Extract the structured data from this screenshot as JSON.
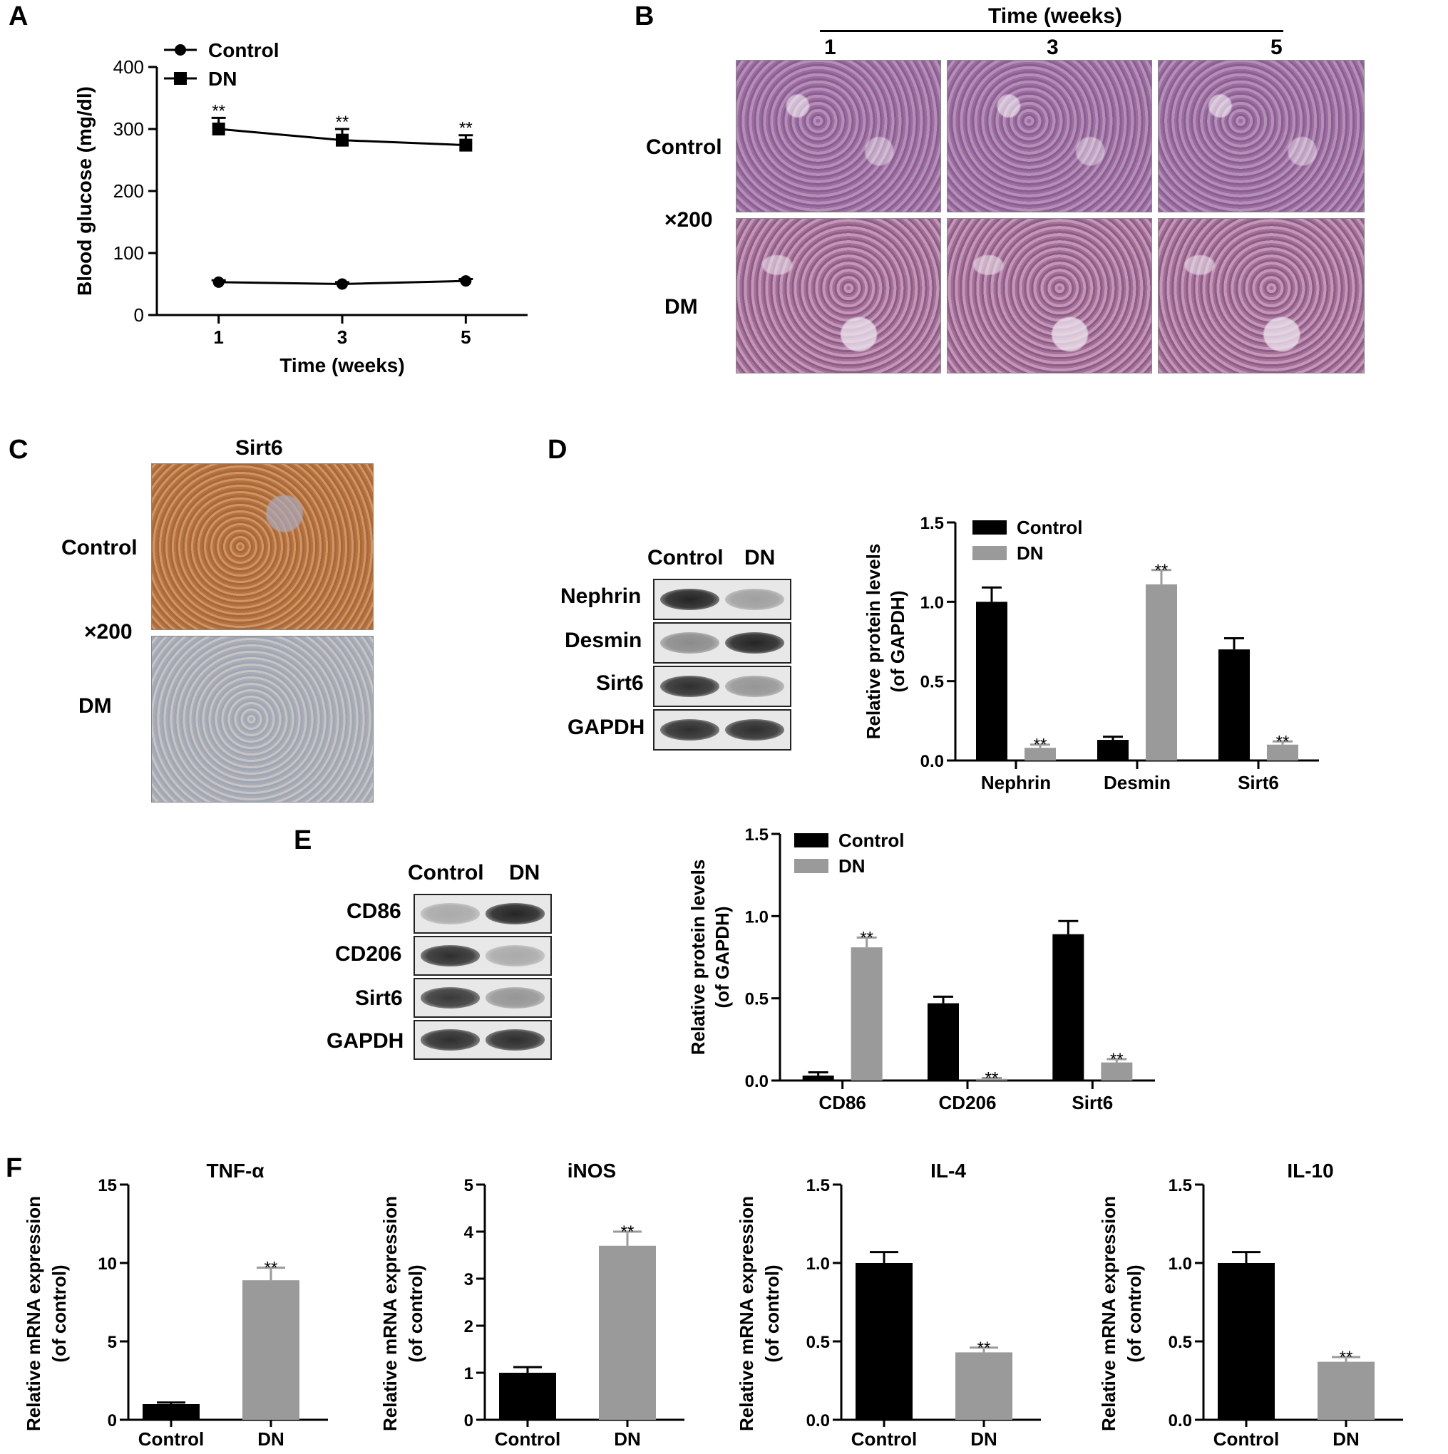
{
  "panel_letters": [
    "A",
    "B",
    "C",
    "D",
    "E",
    "F"
  ],
  "panel_b": {
    "header": "Time (weeks)",
    "columns": [
      "1",
      "3",
      "5"
    ],
    "rows": [
      "Control",
      "DM"
    ],
    "magnification": "×200"
  },
  "panel_c": {
    "title": "Sirt6",
    "rows": [
      "Control",
      "DM"
    ],
    "magnification": "×200"
  },
  "panel_d_blot": {
    "lanes": [
      "Control",
      "DN"
    ],
    "proteins": [
      "Nephrin",
      "Desmin",
      "Sirt6",
      "GAPDH"
    ],
    "intensity": {
      "Nephrin": [
        0.95,
        0.35
      ],
      "Desmin": [
        0.45,
        0.95
      ],
      "Sirt6": [
        0.9,
        0.4
      ],
      "GAPDH": [
        0.9,
        0.9
      ]
    }
  },
  "panel_e_blot": {
    "lanes": [
      "Control",
      "DN"
    ],
    "proteins": [
      "CD86",
      "CD206",
      "Sirt6",
      "GAPDH"
    ],
    "intensity": {
      "CD86": [
        0.3,
        0.95
      ],
      "CD206": [
        0.9,
        0.3
      ],
      "Sirt6": [
        0.85,
        0.4
      ],
      "GAPDH": [
        0.9,
        0.9
      ]
    }
  },
  "chart_data": [
    {
      "id": "A",
      "type": "line",
      "xlabel": "Time (weeks)",
      "ylabel": "Blood glucose (mg/dl)",
      "x": [
        1,
        3,
        5
      ],
      "xticks": [
        "1",
        "3",
        "5"
      ],
      "ylim": [
        0,
        400
      ],
      "yticks": [
        0,
        100,
        200,
        300,
        400
      ],
      "series": [
        {
          "name": "Control",
          "marker": "circle",
          "values": [
            53,
            50,
            55
          ],
          "errors": [
            3,
            3,
            3
          ],
          "sig": [
            "",
            "",
            ""
          ]
        },
        {
          "name": "DN",
          "marker": "square",
          "values": [
            300,
            282,
            274
          ],
          "errors": [
            18,
            18,
            16
          ],
          "sig": [
            "**",
            "**",
            "**"
          ]
        }
      ],
      "legend": "top-left"
    },
    {
      "id": "D",
      "type": "bar",
      "ylabel": "Relative protein levels (of GAPDH)",
      "ylabel_lines": [
        "Relative protein levels",
        "(of GAPDH)"
      ],
      "categories": [
        "Nephrin",
        "Desmin",
        "Sirt6"
      ],
      "ylim": [
        0,
        1.5
      ],
      "yticks": [
        "0.0",
        "0.5",
        "1.0",
        "1.5"
      ],
      "series": [
        {
          "name": "Control",
          "color": "#000000",
          "values": [
            1.0,
            0.13,
            0.7
          ],
          "errors": [
            0.09,
            0.02,
            0.07
          ],
          "sig": [
            "",
            "",
            ""
          ]
        },
        {
          "name": "DN",
          "color": "#9a9a9a",
          "values": [
            0.08,
            1.11,
            0.1
          ],
          "errors": [
            0.02,
            0.09,
            0.02
          ],
          "sig": [
            "**",
            "**",
            "**"
          ]
        }
      ],
      "legend": "top-left"
    },
    {
      "id": "E",
      "type": "bar",
      "ylabel": "Relative protein levels (of GAPDH)",
      "ylabel_lines": [
        "Relative protein levels",
        "(of GAPDH)"
      ],
      "categories": [
        "CD86",
        "CD206",
        "Sirt6"
      ],
      "ylim": [
        0,
        1.5
      ],
      "yticks": [
        "0.0",
        "0.5",
        "1.0",
        "1.5"
      ],
      "series": [
        {
          "name": "Control",
          "color": "#000000",
          "values": [
            0.03,
            0.47,
            0.89
          ],
          "errors": [
            0.02,
            0.04,
            0.08
          ],
          "sig": [
            "",
            "",
            ""
          ]
        },
        {
          "name": "DN",
          "color": "#9a9a9a",
          "values": [
            0.81,
            0.01,
            0.11
          ],
          "errors": [
            0.06,
            0.005,
            0.02
          ],
          "sig": [
            "**",
            "**",
            "**"
          ]
        }
      ],
      "legend": "top-left"
    },
    {
      "id": "F1",
      "type": "bar",
      "title": "TNF-α",
      "ylabel": "Relative mRNA expression (of control)",
      "ylabel_lines": [
        "Relative mRNA expression",
        "(of control)"
      ],
      "categories": [
        "Control",
        "DN"
      ],
      "ylim": [
        0,
        15
      ],
      "yticks": [
        "0",
        "5",
        "10",
        "15"
      ],
      "values": [
        1.0,
        8.9
      ],
      "errors": [
        0.1,
        0.8
      ],
      "colors": [
        "#000000",
        "#9a9a9a"
      ],
      "sig": [
        "",
        "**"
      ]
    },
    {
      "id": "F2",
      "type": "bar",
      "title": "iNOS",
      "ylabel": "Relative mRNA expression (of control)",
      "ylabel_lines": [
        "Relative mRNA expression",
        "(of control)"
      ],
      "categories": [
        "Control",
        "DN"
      ],
      "ylim": [
        0,
        5
      ],
      "yticks": [
        "0",
        "1",
        "2",
        "3",
        "4",
        "5"
      ],
      "values": [
        1.0,
        3.7
      ],
      "errors": [
        0.12,
        0.3
      ],
      "colors": [
        "#000000",
        "#9a9a9a"
      ],
      "sig": [
        "",
        "**"
      ]
    },
    {
      "id": "F3",
      "type": "bar",
      "title": "IL-4",
      "ylabel": "Relative mRNA expression (of control)",
      "ylabel_lines": [
        "Relative mRNA expression",
        "(of control)"
      ],
      "categories": [
        "Control",
        "DN"
      ],
      "ylim": [
        0,
        1.5
      ],
      "yticks": [
        "0.0",
        "0.5",
        "1.0",
        "1.5"
      ],
      "values": [
        1.0,
        0.43
      ],
      "errors": [
        0.07,
        0.03
      ],
      "colors": [
        "#000000",
        "#9a9a9a"
      ],
      "sig": [
        "",
        "**"
      ]
    },
    {
      "id": "F4",
      "type": "bar",
      "title": "IL-10",
      "ylabel": "Relative mRNA expression (of control)",
      "ylabel_lines": [
        "Relative mRNA expression",
        "(of control)"
      ],
      "categories": [
        "Control",
        "DN"
      ],
      "ylim": [
        0,
        1.5
      ],
      "yticks": [
        "0.0",
        "0.5",
        "1.0",
        "1.5"
      ],
      "values": [
        1.0,
        0.37
      ],
      "errors": [
        0.07,
        0.03
      ],
      "colors": [
        "#000000",
        "#9a9a9a"
      ],
      "sig": [
        "",
        "**"
      ]
    }
  ]
}
